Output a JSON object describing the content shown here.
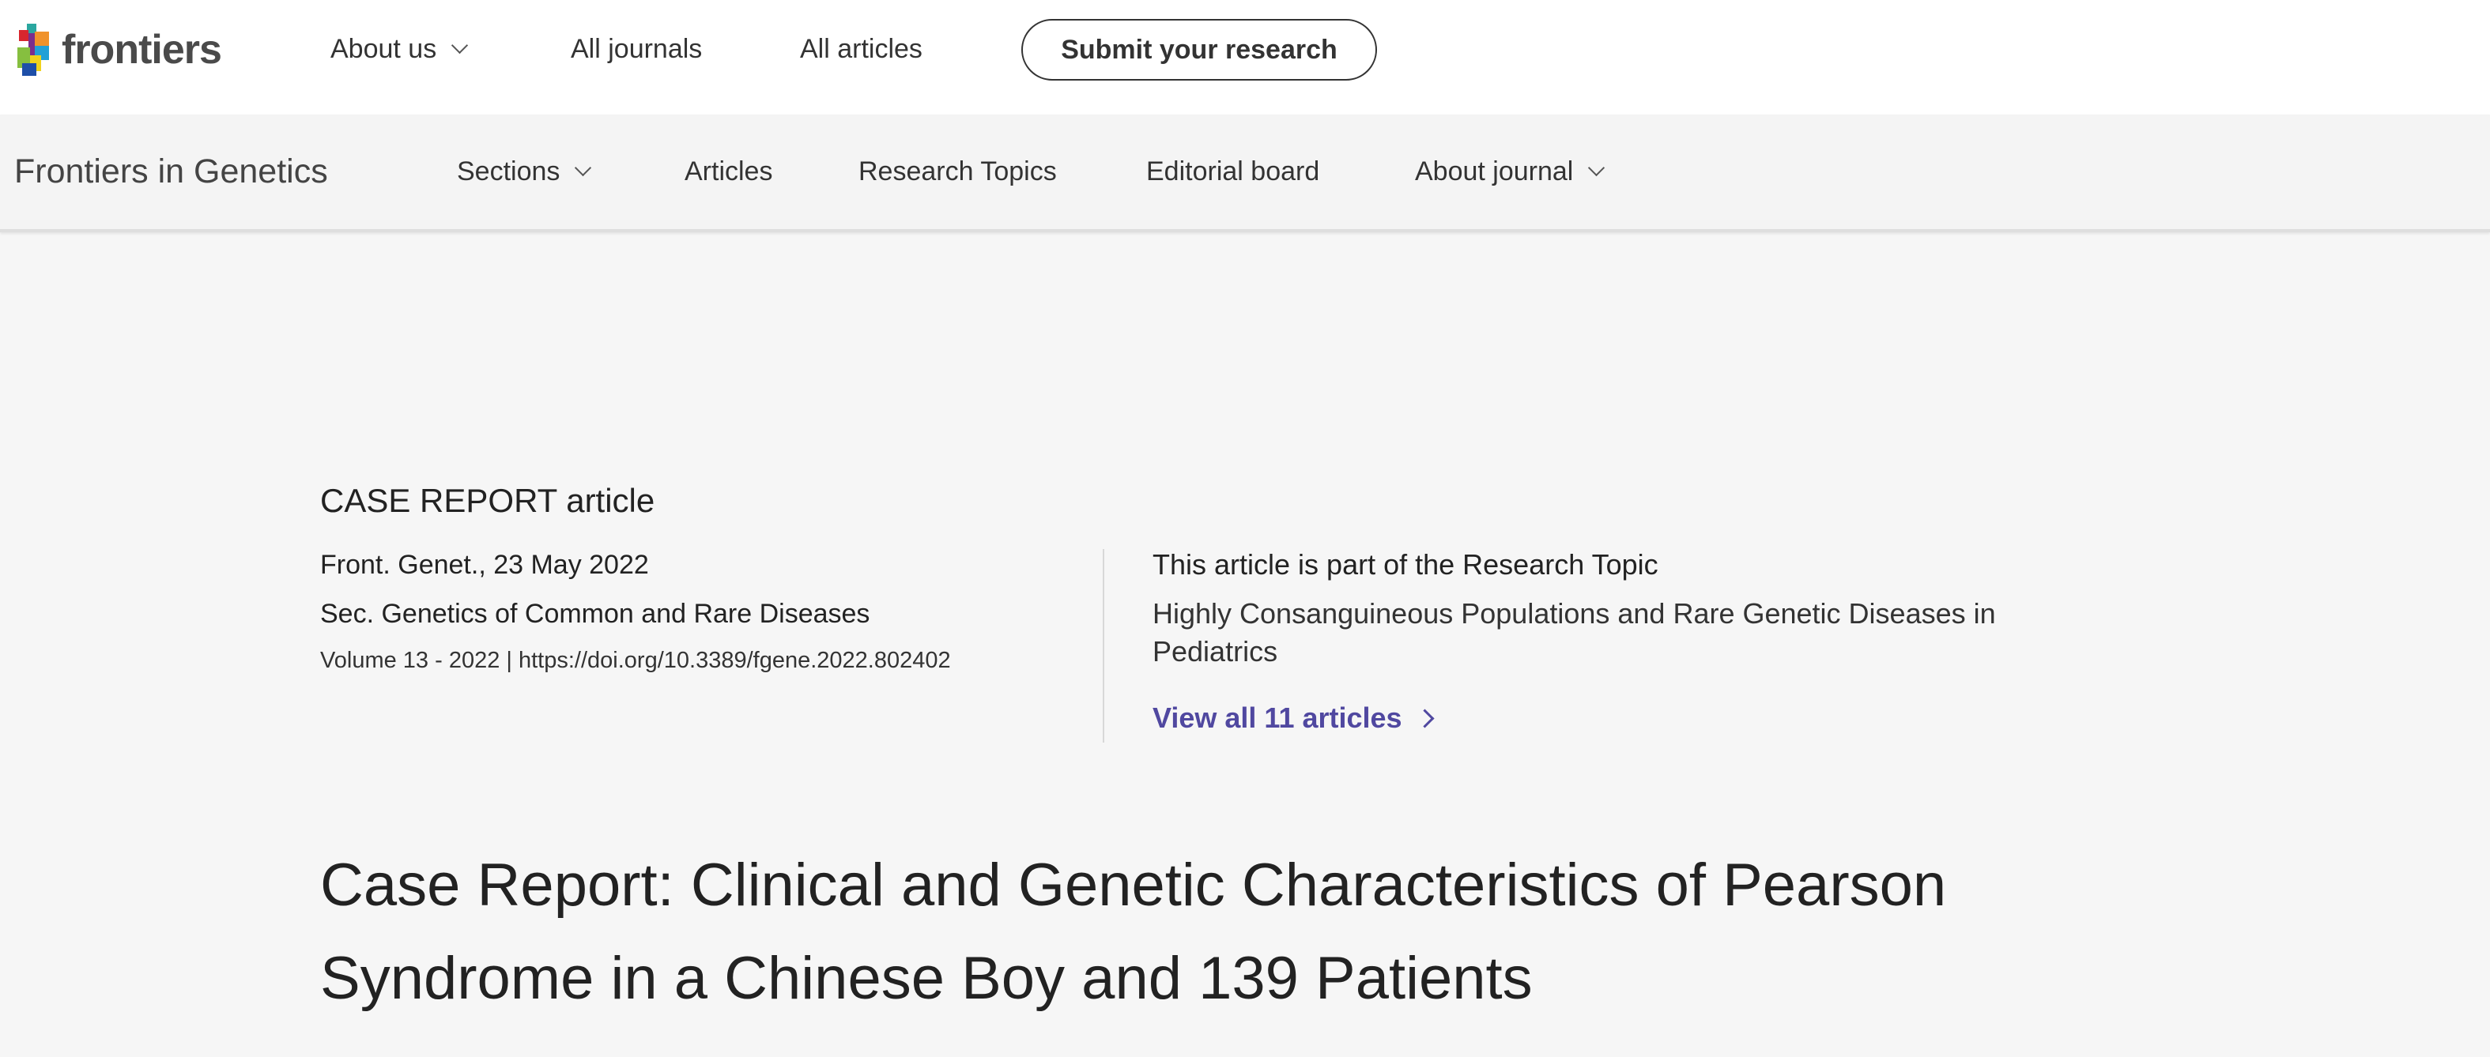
{
  "header": {
    "logo_text": "frontiers",
    "nav": [
      {
        "label": "About us",
        "dropdown": true
      },
      {
        "label": "All journals"
      },
      {
        "label": "All articles"
      }
    ],
    "submit_label": "Submit your research"
  },
  "journal_bar": {
    "title": "Frontiers in Genetics",
    "nav": [
      {
        "label": "Sections",
        "dropdown": true
      },
      {
        "label": "Articles"
      },
      {
        "label": "Research Topics"
      },
      {
        "label": "Editorial board"
      },
      {
        "label": "About journal",
        "dropdown": true
      }
    ]
  },
  "article": {
    "type": "CASE REPORT article",
    "citation": "Front. Genet., 23 May 2022",
    "section": "Sec. Genetics of Common and Rare Diseases",
    "volume": "Volume 13 - 2022",
    "separator": "|",
    "doi": "https://doi.org/10.3389/fgene.2022.802402",
    "topic_intro": "This article is part of the Research Topic",
    "topic_line1": "Highly Consanguineous Populations and Rare Genetic Diseases in",
    "topic_line2": "Pediatrics",
    "view_all": "View all 11 articles",
    "title": "Case Report: Clinical and Genetic Characteristics of Pearson Syndrome in a Chinese Boy and 139 Patients"
  },
  "colors": {
    "link": "#5048a0",
    "bar_bg": "#f4f4f4",
    "page_bg": "#f6f6f6"
  }
}
